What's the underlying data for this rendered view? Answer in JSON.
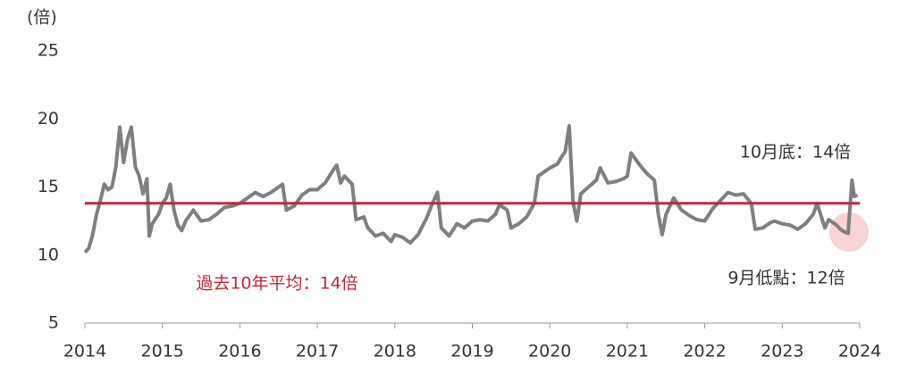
{
  "chart_data": {
    "type": "line",
    "y_unit_label": "(倍)",
    "annotations": [
      "10月底：14倍",
      "過去10年平均：14倍",
      "9月低點：12倍"
    ],
    "xlim": [
      2014,
      2024
    ],
    "xticks": [
      2014,
      2015,
      2016,
      2017,
      2018,
      2019,
      2020,
      2021,
      2022,
      2023,
      2024
    ],
    "ylim": [
      5,
      25
    ],
    "yticks": [
      5,
      10,
      15,
      20,
      25
    ],
    "reference_line": {
      "value": 13.8,
      "color": "#c0283a"
    },
    "x": [
      2014.0,
      2014.05,
      2014.1,
      2014.15,
      2014.2,
      2014.25,
      2014.3,
      2014.35,
      2014.4,
      2014.45,
      2014.5,
      2014.55,
      2014.6,
      2014.65,
      2014.7,
      2014.75,
      2014.8,
      2014.83,
      2014.87,
      2014.95,
      2015.0,
      2015.05,
      2015.1,
      2015.15,
      2015.2,
      2015.25,
      2015.3,
      2015.4,
      2015.5,
      2015.6,
      2015.7,
      2015.8,
      2015.9,
      2016.0,
      2016.1,
      2016.2,
      2016.3,
      2016.4,
      2016.5,
      2016.55,
      2016.6,
      2016.7,
      2016.8,
      2016.9,
      2017.0,
      2017.1,
      2017.2,
      2017.25,
      2017.3,
      2017.35,
      2017.45,
      2017.5,
      2017.6,
      2017.65,
      2017.75,
      2017.85,
      2017.95,
      2018.0,
      2018.1,
      2018.2,
      2018.3,
      2018.4,
      2018.5,
      2018.55,
      2018.6,
      2018.7,
      2018.8,
      2018.9,
      2019.0,
      2019.1,
      2019.2,
      2019.3,
      2019.35,
      2019.45,
      2019.5,
      2019.6,
      2019.7,
      2019.8,
      2019.85,
      2019.9,
      2020.0,
      2020.1,
      2020.15,
      2020.2,
      2020.25,
      2020.3,
      2020.35,
      2020.4,
      2020.5,
      2020.6,
      2020.65,
      2020.75,
      2020.85,
      2020.95,
      2021.0,
      2021.05,
      2021.15,
      2021.25,
      2021.35,
      2021.4,
      2021.45,
      2021.5,
      2021.6,
      2021.7,
      2021.8,
      2021.9,
      2022.0,
      2022.1,
      2022.2,
      2022.3,
      2022.4,
      2022.5,
      2022.6,
      2022.65,
      2022.75,
      2022.85,
      2022.9,
      2023.0,
      2023.1,
      2023.2,
      2023.3,
      2023.4,
      2023.45,
      2023.55,
      2023.6,
      2023.7,
      2023.75,
      2023.8,
      2023.85,
      2023.9,
      2023.93,
      2023.97
    ],
    "series": [
      {
        "color": "#7f7f7f",
        "values": [
          10.2,
          10.5,
          11.5,
          13.0,
          14.0,
          15.2,
          14.8,
          15.0,
          16.5,
          19.4,
          16.8,
          18.5,
          19.4,
          16.5,
          15.8,
          14.5,
          15.6,
          11.4,
          12.3,
          13.0,
          13.8,
          14.2,
          15.2,
          13.3,
          12.2,
          11.8,
          12.5,
          13.3,
          12.5,
          12.6,
          13.0,
          13.5,
          13.6,
          13.8,
          14.2,
          14.6,
          14.3,
          14.6,
          15.0,
          15.2,
          13.3,
          13.6,
          14.4,
          14.8,
          14.8,
          15.3,
          16.2,
          16.6,
          15.3,
          15.8,
          15.2,
          12.6,
          12.8,
          12.0,
          11.4,
          11.6,
          11.0,
          11.5,
          11.3,
          10.9,
          11.5,
          12.6,
          14.0,
          14.6,
          12.0,
          11.4,
          12.3,
          12.0,
          12.5,
          12.6,
          12.5,
          13.0,
          13.7,
          13.3,
          12.0,
          12.3,
          12.8,
          13.8,
          15.8,
          16.0,
          16.4,
          16.7,
          17.2,
          17.6,
          19.5,
          13.9,
          12.5,
          14.5,
          15.0,
          15.5,
          16.4,
          15.3,
          15.4,
          15.6,
          15.8,
          17.5,
          16.7,
          16.0,
          15.5,
          13.0,
          11.5,
          13.0,
          14.2,
          13.3,
          12.9,
          12.6,
          12.5,
          13.4,
          14.0,
          14.6,
          14.4,
          14.5,
          13.8,
          11.9,
          12.0,
          12.4,
          12.5,
          12.3,
          12.2,
          11.9,
          12.3,
          13.0,
          13.8,
          12.0,
          12.6,
          12.2,
          11.9,
          11.7,
          11.6,
          15.5,
          14.3,
          14.4
        ]
      }
    ]
  }
}
